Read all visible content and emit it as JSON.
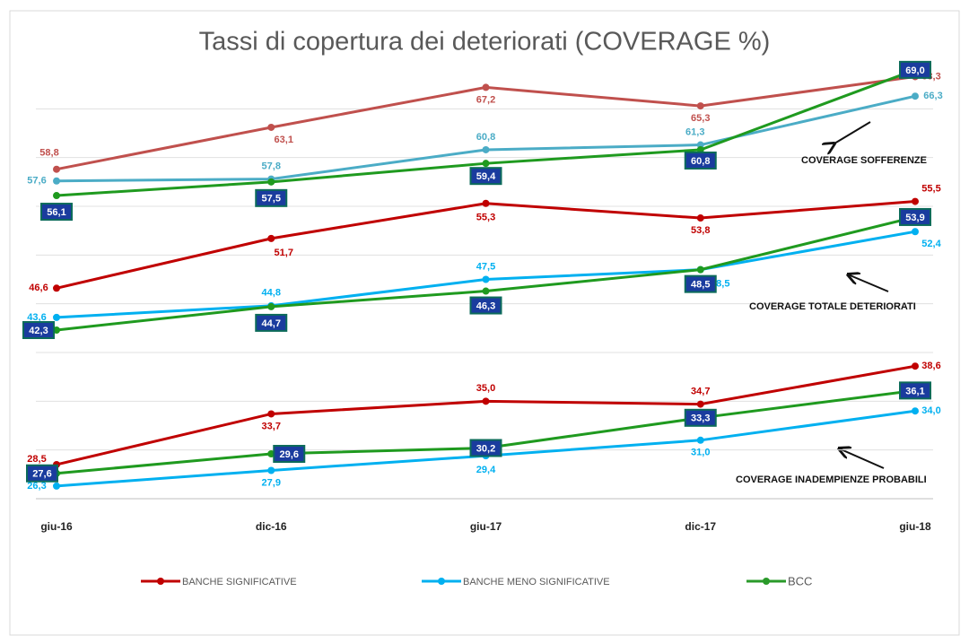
{
  "chart_data": {
    "type": "line",
    "title": "Tassi di copertura dei deteriorati (COVERAGE %)",
    "categories": [
      "giu-16",
      "dic-16",
      "giu-17",
      "dic-17",
      "giu-18"
    ],
    "ylim": [
      25,
      70
    ],
    "yticks": [
      25,
      30,
      35,
      40,
      45,
      50,
      55,
      60,
      65
    ],
    "grid": true,
    "series": [
      {
        "name": "BANCHE SIGNIFICATIVE",
        "color": "#c00000"
      },
      {
        "name": "BANCHE MENO SIGNIFICATIVE",
        "color": "#00b0f0"
      },
      {
        "name": "BCC",
        "color": "#2a9a2a"
      }
    ],
    "groups": [
      {
        "label": "COVERAGE SOFFERENZE",
        "colors": [
          "#c0504d",
          "#4bacc6",
          "#1f9a1f"
        ],
        "values": [
          [
            58.8,
            63.1,
            67.2,
            65.3,
            68.3
          ],
          [
            57.6,
            57.8,
            60.8,
            61.3,
            66.3
          ],
          [
            56.1,
            57.5,
            59.4,
            60.8,
            69.0
          ]
        ],
        "value_labels": [
          [
            "58,8",
            "63,1",
            "67,2",
            "65,3",
            "68,3"
          ],
          [
            "57,6",
            "57,8",
            "60,8",
            "61,3",
            "66,3"
          ],
          [
            "56,1",
            "57,5",
            "59,4",
            "60,8",
            "69,0"
          ]
        ]
      },
      {
        "label": "COVERAGE TOTALE DETERIORATI",
        "colors": [
          "#c00000",
          "#00b0f0",
          "#1f9a1f"
        ],
        "values": [
          [
            46.6,
            51.7,
            55.3,
            53.8,
            55.5
          ],
          [
            43.6,
            44.8,
            47.5,
            48.5,
            52.4
          ],
          [
            42.3,
            44.7,
            46.3,
            48.5,
            53.9
          ]
        ],
        "value_labels": [
          [
            "46,6",
            "51,7",
            "55,3",
            "53,8",
            "55,5"
          ],
          [
            "43,6",
            "44,8",
            "47,5",
            "48,5",
            "52,4"
          ],
          [
            "42,3",
            "44,7",
            "46,3",
            "48,5",
            "53,9"
          ]
        ]
      },
      {
        "label": "COVERAGE INADEMPIENZE PROBABILI",
        "colors": [
          "#c00000",
          "#00b0f0",
          "#1f9a1f"
        ],
        "values": [
          [
            28.5,
            33.7,
            35.0,
            34.7,
            38.6
          ],
          [
            26.3,
            27.9,
            29.4,
            31.0,
            34.0
          ],
          [
            27.6,
            29.6,
            30.2,
            33.3,
            36.1
          ]
        ],
        "value_labels": [
          [
            "28,5",
            "33,7",
            "35,0",
            "34,7",
            "38,6"
          ],
          [
            "26,3",
            "27,9",
            "29,4",
            "31,0",
            "34,0"
          ],
          [
            "27,6",
            "29,6",
            "30,2",
            "33,3",
            "36,1"
          ]
        ]
      }
    ]
  }
}
